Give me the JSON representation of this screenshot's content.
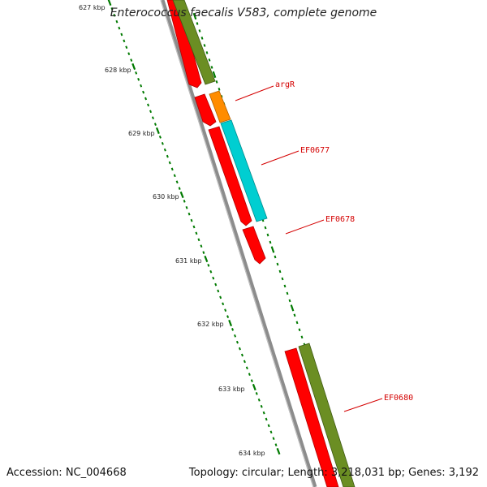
{
  "title": "Enterococcus faecalis V583, complete genome",
  "accession": "Accession: NC_004668",
  "topology": "Topology: circular; Length: 3,218,031 bp; Genes: 3,192",
  "scale_unit": "kbp",
  "ticks": [
    "627 kbp",
    "628 kbp",
    "629 kbp",
    "630 kbp",
    "631 kbp",
    "632 kbp",
    "633 kbp",
    "634 kbp"
  ],
  "colors": {
    "backbone": "#8c8c8c",
    "cds_red": "#ff0000",
    "olive": "#6b8e23",
    "orange": "#ff8c00",
    "cyan": "#00ced1",
    "tick": "#007a00",
    "label": "#d40000"
  },
  "gene_labels": [
    "argR",
    "EF0677",
    "EF0678",
    "EF0680"
  ]
}
